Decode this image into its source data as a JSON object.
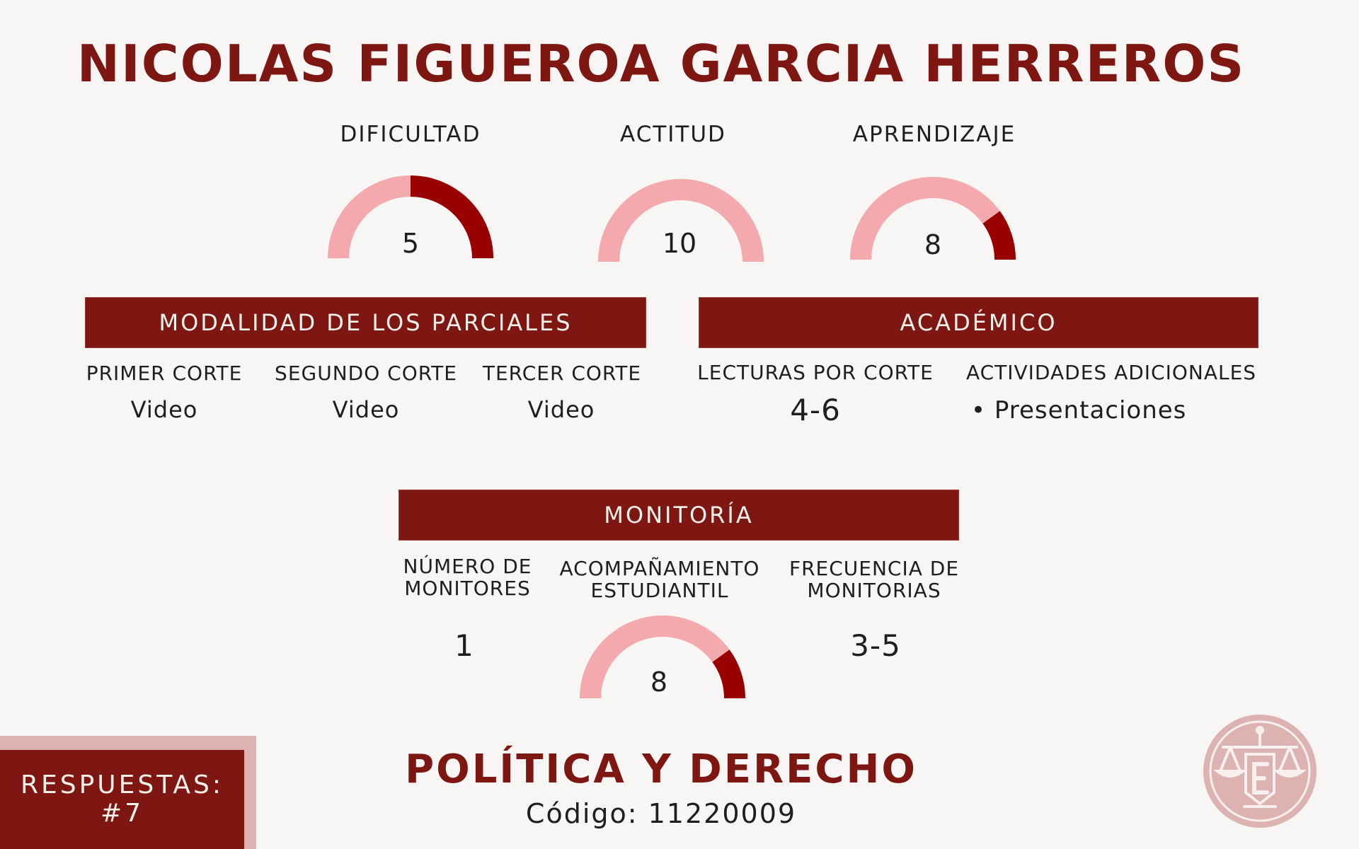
{
  "title": "NICOLAS FIGUEROA GARCIA HERREROS",
  "colors": {
    "accent": "#7e1612",
    "gauge_fill": "#990000",
    "gauge_track": "#f4a9ac",
    "background": "#f7f6f4"
  },
  "gauges": [
    {
      "label": "DIFICULTAD",
      "value": "5",
      "fraction": 0.5
    },
    {
      "label": "ACTITUD",
      "value": "10",
      "fraction": 0.0
    },
    {
      "label": "APRENDIZAJE",
      "value": "8",
      "fraction": 0.2
    }
  ],
  "parciales": {
    "heading": "MODALIDAD DE LOS PARCIALES",
    "columns": [
      {
        "label": "PRIMER CORTE",
        "value": "Video"
      },
      {
        "label": "SEGUNDO CORTE",
        "value": "Video"
      },
      {
        "label": "TERCER CORTE",
        "value": "Video"
      }
    ]
  },
  "academico": {
    "heading": "ACADÉMICO",
    "lecturas_label": "LECTURAS POR CORTE",
    "lecturas_value": "4-6",
    "actividades_label": "ACTIVIDADES ADICIONALES",
    "actividades_items": [
      "Presentaciones"
    ]
  },
  "monitoria": {
    "heading": "MONITORÍA",
    "numero_label_1": "NÚMERO DE",
    "numero_label_2": "MONITORES",
    "numero_value": "1",
    "acompanamiento_label_1": "ACOMPAÑAMIENTO",
    "acompanamiento_label_2": "ESTUDIANTIL",
    "acompanamiento_value": "8",
    "acompanamiento_fraction": 0.2,
    "frecuencia_label_1": "FRECUENCIA DE",
    "frecuencia_label_2": "MONITORIAS",
    "frecuencia_value": "3-5"
  },
  "footer": {
    "program": "POLÍTICA Y DERECHO",
    "code": "Código: 11220009",
    "respuestas_label": "RESPUESTAS:",
    "respuestas_value": "#7",
    "logo_icon": "scales-of-justice-emblem-icon"
  }
}
